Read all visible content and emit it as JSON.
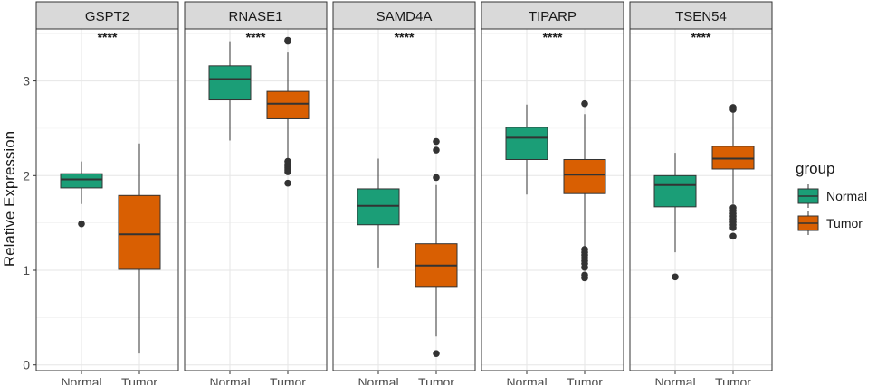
{
  "chart_data": {
    "type": "boxplot",
    "ylabel": "Relative Expression",
    "ylim": [
      -0.06,
      3.55
    ],
    "yticks": [
      0,
      1,
      2,
      3
    ],
    "legend": {
      "title": "group",
      "position": "right",
      "entries": [
        {
          "name": "Normal",
          "color": "#1b9e77"
        },
        {
          "name": "Tumor",
          "color": "#d95f02"
        }
      ]
    },
    "facets": [
      {
        "title": "GSPT2",
        "significance": "****",
        "groups": [
          {
            "name": "Normal",
            "color": "#1b9e77",
            "q1": 1.87,
            "median": 1.96,
            "q3": 2.02,
            "whisker_low": 1.7,
            "whisker_high": 2.15,
            "outliers": [
              1.49
            ]
          },
          {
            "name": "Tumor",
            "color": "#d95f02",
            "q1": 1.01,
            "median": 1.38,
            "q3": 1.79,
            "whisker_low": 0.12,
            "whisker_high": 2.34,
            "outliers": []
          }
        ]
      },
      {
        "title": "RNASE1",
        "significance": "****",
        "groups": [
          {
            "name": "Normal",
            "color": "#1b9e77",
            "q1": 2.8,
            "median": 3.02,
            "q3": 3.16,
            "whisker_low": 2.37,
            "whisker_high": 3.42,
            "outliers": []
          },
          {
            "name": "Tumor",
            "color": "#d95f02",
            "q1": 2.6,
            "median": 2.76,
            "q3": 2.89,
            "whisker_low": 2.17,
            "whisker_high": 3.3,
            "outliers": [
              3.43,
              3.42,
              2.15,
              2.12,
              2.1,
              2.08,
              2.06,
              2.04,
              1.92
            ]
          }
        ]
      },
      {
        "title": "SAMD4A",
        "significance": "****",
        "groups": [
          {
            "name": "Normal",
            "color": "#1b9e77",
            "q1": 1.48,
            "median": 1.68,
            "q3": 1.86,
            "whisker_low": 1.03,
            "whisker_high": 2.18,
            "outliers": []
          },
          {
            "name": "Tumor",
            "color": "#d95f02",
            "q1": 0.82,
            "median": 1.05,
            "q3": 1.28,
            "whisker_low": 0.3,
            "whisker_high": 1.9,
            "outliers": [
              2.36,
              2.27,
              1.98,
              0.12
            ]
          }
        ]
      },
      {
        "title": "TIPARP",
        "significance": "****",
        "groups": [
          {
            "name": "Normal",
            "color": "#1b9e77",
            "q1": 2.17,
            "median": 2.4,
            "q3": 2.51,
            "whisker_low": 1.8,
            "whisker_high": 2.75,
            "outliers": []
          },
          {
            "name": "Tumor",
            "color": "#d95f02",
            "q1": 1.81,
            "median": 2.01,
            "q3": 2.17,
            "whisker_low": 1.25,
            "whisker_high": 2.65,
            "outliers": [
              2.76,
              1.22,
              1.19,
              1.16,
              1.13,
              1.1,
              1.07,
              1.03,
              0.95,
              0.92
            ]
          }
        ]
      },
      {
        "title": "TSEN54",
        "significance": "****",
        "groups": [
          {
            "name": "Normal",
            "color": "#1b9e77",
            "q1": 1.67,
            "median": 1.9,
            "q3": 2.0,
            "whisker_low": 1.19,
            "whisker_high": 2.24,
            "outliers": [
              0.93
            ]
          },
          {
            "name": "Tumor",
            "color": "#d95f02",
            "q1": 2.07,
            "median": 2.18,
            "q3": 2.31,
            "whisker_low": 1.7,
            "whisker_high": 2.68,
            "outliers": [
              2.72,
              2.7,
              1.66,
              1.63,
              1.6,
              1.57,
              1.54,
              1.51,
              1.48,
              1.45,
              1.36
            ]
          }
        ]
      }
    ]
  }
}
